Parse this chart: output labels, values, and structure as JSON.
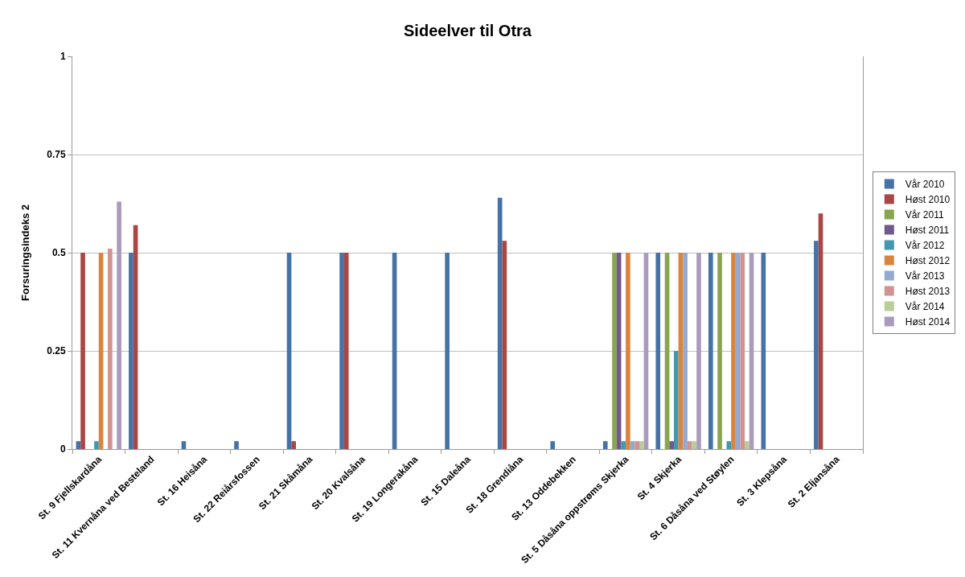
{
  "chart_data": {
    "type": "bar",
    "title": "Sideelver til Otra",
    "ylabel": "Forsuringsindeks 2",
    "categories": [
      "St. 9 Fjellskardåna",
      "St. 11 Kvernåna ved Besteland",
      "St. 16 Heisåna",
      "St. 22 Reiårsfossen",
      "St. 21 Skåmåna",
      "St. 20 Kvalsåna",
      "St. 19 Longerakåna",
      "St. 15 Daleåna",
      "St. 18 Grendiåna",
      "St. 13 Oddebekken",
      "St. 5 Dåsåna oppstrøms Skjerka",
      "St. 4 Skjerka",
      "St. 6 Dåsåna ved Støylen",
      "St. 3 Klepsåna",
      "St. 2 Eljansåna"
    ],
    "series": [
      {
        "name": "Vår 2010",
        "color": "#4572a7",
        "values": [
          0.02,
          0.5,
          0.02,
          0.02,
          0.5,
          0.5,
          0.5,
          0.5,
          0.64,
          0.02,
          0.02,
          0.5,
          0.5,
          0.5,
          0.53
        ]
      },
      {
        "name": "Høst 2010",
        "color": "#aa4643",
        "values": [
          0.5,
          0.57,
          null,
          null,
          0.02,
          0.5,
          null,
          null,
          0.53,
          null,
          null,
          null,
          null,
          null,
          0.6
        ]
      },
      {
        "name": "Vår 2011",
        "color": "#89a54e",
        "values": [
          null,
          null,
          null,
          null,
          null,
          null,
          null,
          null,
          null,
          null,
          0.5,
          0.5,
          0.5,
          null,
          null
        ]
      },
      {
        "name": "Høst 2011",
        "color": "#71588f",
        "values": [
          null,
          null,
          null,
          null,
          null,
          null,
          null,
          null,
          null,
          null,
          0.5,
          0.02,
          null,
          null,
          null
        ]
      },
      {
        "name": "Vår 2012",
        "color": "#4198af",
        "values": [
          0.02,
          null,
          null,
          null,
          null,
          null,
          null,
          null,
          null,
          null,
          0.02,
          0.25,
          0.02,
          null,
          null
        ]
      },
      {
        "name": "Høst 2012",
        "color": "#db843d",
        "values": [
          0.5,
          null,
          null,
          null,
          null,
          null,
          null,
          null,
          null,
          null,
          0.5,
          0.5,
          0.5,
          null,
          null
        ]
      },
      {
        "name": "Vår 2013",
        "color": "#93a9cf",
        "values": [
          null,
          null,
          null,
          null,
          null,
          null,
          null,
          null,
          null,
          null,
          0.02,
          0.5,
          0.5,
          null,
          null
        ]
      },
      {
        "name": "Høst 2013",
        "color": "#d19392",
        "values": [
          0.51,
          null,
          null,
          null,
          null,
          null,
          null,
          null,
          null,
          null,
          0.02,
          0.02,
          0.5,
          null,
          null
        ]
      },
      {
        "name": "Vår 2014",
        "color": "#b9cd96",
        "values": [
          null,
          null,
          null,
          null,
          null,
          null,
          null,
          null,
          null,
          null,
          0.02,
          0.02,
          0.02,
          null,
          null
        ]
      },
      {
        "name": "Høst 2014",
        "color": "#a99bbd",
        "values": [
          0.63,
          null,
          null,
          null,
          null,
          null,
          null,
          null,
          null,
          null,
          0.5,
          0.5,
          0.5,
          null,
          null
        ]
      }
    ],
    "ylim": [
      0,
      1
    ],
    "yticks": [
      0,
      0.25,
      0.5,
      0.75,
      1
    ],
    "grid": "y",
    "legend": "right"
  }
}
